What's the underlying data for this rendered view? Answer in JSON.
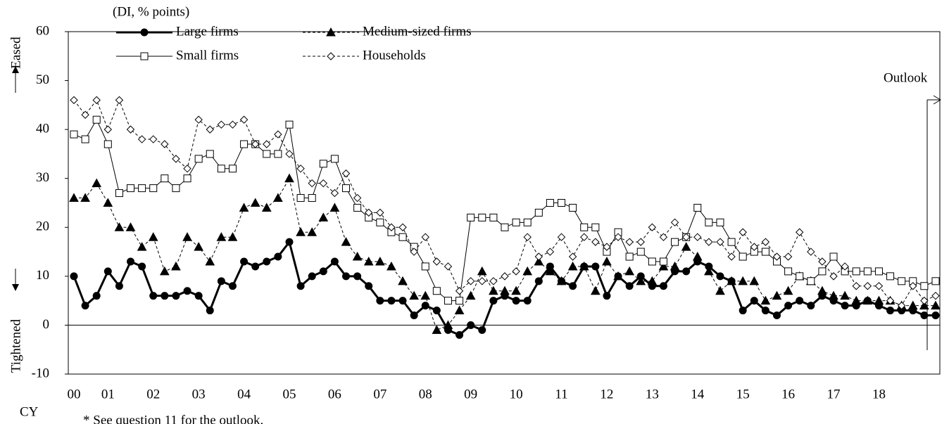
{
  "chart_data": {
    "type": "line",
    "unit_label": "(DI, % points)",
    "y_top_label": "Eased",
    "y_bottom_label": "Tightened",
    "x_axis_label": "CY",
    "outlook_label": "Outlook",
    "footnote": "* See question 11 for the outlook.",
    "categories": [
      "00",
      null,
      null,
      "01",
      null,
      null,
      null,
      "02",
      null,
      null,
      null,
      "03",
      null,
      null,
      null,
      "04",
      null,
      null,
      null,
      "05",
      null,
      null,
      null,
      "06",
      null,
      null,
      null,
      "07",
      null,
      null,
      null,
      "08",
      null,
      null,
      null,
      "09",
      null,
      null,
      null,
      "10",
      null,
      null,
      null,
      "11",
      null,
      null,
      null,
      "12",
      null,
      null,
      null,
      "13",
      null,
      null,
      null,
      "14",
      null,
      null,
      null,
      "15",
      null,
      null,
      null,
      "16",
      null,
      null,
      null,
      "17",
      null,
      null,
      null,
      "18",
      null,
      null,
      null,
      null,
      null
    ],
    "ylim": [
      -10,
      60
    ],
    "yticks": [
      -10,
      0,
      10,
      20,
      30,
      40,
      50,
      60
    ],
    "series": [
      {
        "name": "Large firms",
        "color": "#000000",
        "marker": "circle",
        "dash": false,
        "width": 3,
        "values": [
          10,
          4,
          6,
          11,
          8,
          13,
          12,
          6,
          6,
          6,
          7,
          6,
          3,
          9,
          8,
          13,
          12,
          13,
          14,
          17,
          8,
          10,
          11,
          13,
          10,
          10,
          8,
          5,
          5,
          5,
          2,
          4,
          3,
          -1,
          -2,
          0,
          -1,
          5,
          6,
          5,
          5,
          9,
          12,
          9,
          8,
          12,
          12,
          6,
          10,
          8,
          10,
          8,
          8,
          11,
          11,
          13,
          12,
          10,
          9,
          3,
          5,
          3,
          2,
          4,
          5,
          4,
          6,
          5,
          4,
          4,
          5,
          4,
          3,
          3,
          3,
          2,
          2
        ]
      },
      {
        "name": "Medium-sized firms",
        "color": "#000000",
        "marker": "triangle",
        "dash": true,
        "width": 1,
        "values": [
          26,
          26,
          29,
          25,
          20,
          20,
          16,
          18,
          11,
          12,
          18,
          16,
          13,
          18,
          18,
          24,
          25,
          24,
          26,
          30,
          19,
          19,
          22,
          24,
          17,
          14,
          13,
          13,
          12,
          9,
          6,
          6,
          -1,
          0,
          3,
          6,
          11,
          7,
          7,
          7,
          11,
          13,
          11,
          9,
          12,
          12,
          7,
          13,
          10,
          11,
          9,
          9,
          12,
          12,
          16,
          14,
          11,
          7,
          9,
          9,
          9,
          5,
          6,
          7,
          10,
          9,
          7,
          6,
          6,
          5,
          5,
          5,
          5,
          4,
          4,
          4,
          4
        ]
      },
      {
        "name": "Small firms",
        "color": "#000000",
        "marker": "square",
        "dash": false,
        "width": 1,
        "values": [
          39,
          38,
          42,
          37,
          27,
          28,
          28,
          28,
          30,
          28,
          30,
          34,
          35,
          32,
          32,
          37,
          37,
          35,
          35,
          41,
          26,
          26,
          33,
          34,
          28,
          24,
          22,
          21,
          19,
          18,
          16,
          12,
          7,
          5,
          5,
          22,
          22,
          22,
          20,
          21,
          21,
          23,
          25,
          25,
          24,
          20,
          20,
          15,
          19,
          14,
          15,
          13,
          13,
          17,
          18,
          24,
          21,
          21,
          17,
          14,
          15,
          15,
          13,
          11,
          10,
          9,
          11,
          14,
          11,
          11,
          11,
          11,
          10,
          9,
          9,
          8,
          9
        ]
      },
      {
        "name": "Households",
        "color": "#000000",
        "marker": "diamond",
        "dash": true,
        "width": 1,
        "values": [
          46,
          43,
          46,
          40,
          46,
          40,
          38,
          38,
          37,
          34,
          32,
          42,
          40,
          41,
          41,
          42,
          37,
          37,
          39,
          35,
          32,
          29,
          29,
          27,
          31,
          26,
          23,
          23,
          20,
          20,
          15,
          18,
          13,
          12,
          7,
          9,
          9,
          9,
          10,
          11,
          18,
          14,
          15,
          18,
          14,
          18,
          17,
          16,
          18,
          17,
          17,
          20,
          18,
          21,
          18,
          18,
          17,
          17,
          14,
          19,
          16,
          17,
          14,
          14,
          19,
          15,
          13,
          10,
          12,
          8,
          8,
          8,
          5,
          4,
          8,
          5,
          6
        ]
      }
    ]
  }
}
